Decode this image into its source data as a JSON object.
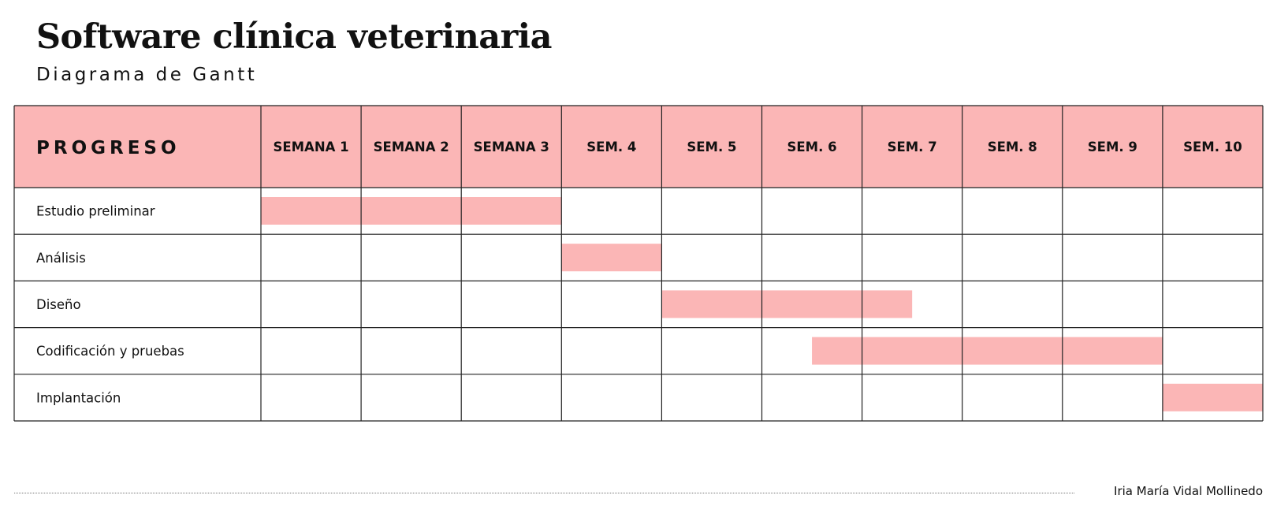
{
  "header": {
    "title": "Software clínica veterinaria",
    "subtitle": "Diagrama de Gantt"
  },
  "footer": {
    "author": "Iria María Vidal Mollinedo"
  },
  "colors": {
    "accent": "#fbb6b6",
    "grid": "#222222",
    "text": "#111111"
  },
  "chart_data": {
    "type": "gantt",
    "title": "Software clínica veterinaria",
    "subtitle": "Diagrama de Gantt",
    "task_column_header": "PROGRESO",
    "periods": [
      "SEMANA 1",
      "SEMANA 2",
      "SEMANA 3",
      "SEM. 4",
      "SEM. 5",
      "SEM. 6",
      "SEM. 7",
      "SEM. 8",
      "SEM. 9",
      "SEM. 10"
    ],
    "tasks": [
      {
        "name": "Estudio preliminar",
        "start_week": 1,
        "end_week": 3
      },
      {
        "name": "Análisis",
        "start_week": 4,
        "end_week": 4
      },
      {
        "name": "Diseño",
        "start_week": 5,
        "end_week": 6.5
      },
      {
        "name": "Codificación y pruebas",
        "start_week": 6.5,
        "end_week": 9
      },
      {
        "name": "Implantación",
        "start_week": 10,
        "end_week": 10
      }
    ]
  }
}
